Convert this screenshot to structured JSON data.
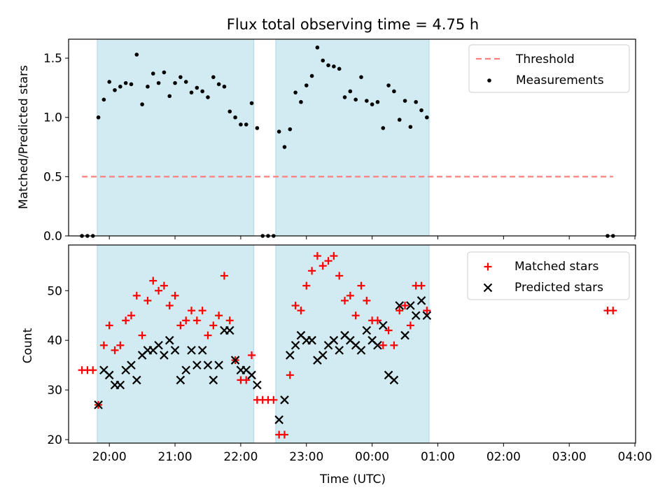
{
  "chart_data": [
    {
      "type": "scatter",
      "title": "Flux total observing time = 4.75 h",
      "xlabel": "",
      "ylabel": "Matched/Predicted stars",
      "x_axis": "time_utc_hours_from_midnight_day1",
      "xlim": [
        19.38,
        28.01
      ],
      "ylim": [
        0,
        1.66
      ],
      "xticks": [],
      "yticks": [
        {
          "value": 0.0,
          "label": "0.0"
        },
        {
          "value": 0.5,
          "label": "0.5"
        },
        {
          "value": 1.0,
          "label": "1.0"
        },
        {
          "value": 1.5,
          "label": "1.5"
        }
      ],
      "shaded_spans": [
        {
          "start": "19:49",
          "end": "22:12",
          "color": "#add8e6",
          "label": "observing-interval-1"
        },
        {
          "start": "22:32",
          "end": "00:52",
          "color": "#add8e6",
          "label": "observing-interval-2"
        }
      ],
      "threshold": {
        "name": "Threshold",
        "value": 0.5,
        "x_range": [
          "19:35",
          "03:40"
        ],
        "color": "#ff7f7f",
        "style": "dashed"
      },
      "series": [
        {
          "name": "Measurements",
          "color": "#000000",
          "marker": "dot",
          "x": [
            "19:35",
            "19:40",
            "19:45",
            "19:50",
            "19:55",
            "20:00",
            "20:05",
            "20:10",
            "20:15",
            "20:20",
            "20:25",
            "20:30",
            "20:35",
            "20:40",
            "20:45",
            "20:50",
            "20:55",
            "21:00",
            "21:05",
            "21:10",
            "21:15",
            "21:20",
            "21:25",
            "21:30",
            "21:35",
            "21:40",
            "21:45",
            "21:50",
            "21:55",
            "22:00",
            "22:05",
            "22:10",
            "22:15",
            "22:20",
            "22:25",
            "22:30",
            "22:35",
            "22:40",
            "22:45",
            "22:50",
            "22:55",
            "23:00",
            "23:05",
            "23:10",
            "23:15",
            "23:20",
            "23:25",
            "23:30",
            "23:35",
            "23:40",
            "23:45",
            "23:50",
            "23:55",
            "00:00",
            "00:05",
            "00:10",
            "00:15",
            "00:20",
            "00:25",
            "00:30",
            "00:35",
            "00:40",
            "00:45",
            "00:50",
            "03:35",
            "03:40"
          ],
          "y": [
            0.0,
            0.0,
            0.0,
            1.0,
            1.15,
            1.3,
            1.23,
            1.26,
            1.29,
            1.28,
            1.53,
            1.11,
            1.26,
            1.37,
            1.29,
            1.38,
            1.18,
            1.29,
            1.34,
            1.3,
            1.21,
            1.25,
            1.22,
            1.17,
            1.34,
            1.28,
            1.26,
            1.05,
            1.0,
            0.94,
            0.94,
            1.12,
            0.91,
            0.0,
            0.0,
            0.0,
            0.88,
            0.75,
            0.9,
            1.21,
            1.13,
            1.27,
            1.35,
            1.59,
            1.48,
            1.44,
            1.43,
            1.41,
            1.17,
            1.22,
            1.15,
            1.34,
            1.14,
            1.11,
            1.13,
            0.91,
            1.27,
            1.22,
            0.98,
            1.14,
            0.92,
            1.13,
            1.06,
            1.0,
            0.0,
            0.0
          ]
        }
      ],
      "legend": {
        "position": "top-right",
        "entries": [
          "Threshold",
          "Measurements"
        ]
      },
      "grid": false
    },
    {
      "type": "scatter",
      "title": "",
      "xlabel": "Time (UTC)",
      "ylabel": "Count",
      "x_axis": "time_utc_hours_from_midnight_day1",
      "xlim": [
        19.38,
        28.01
      ],
      "ylim": [
        19.3,
        59.2
      ],
      "xticks": [
        {
          "value": 20,
          "label": "20:00"
        },
        {
          "value": 21,
          "label": "21:00"
        },
        {
          "value": 22,
          "label": "22:00"
        },
        {
          "value": 23,
          "label": "23:00"
        },
        {
          "value": 24,
          "label": "00:00"
        },
        {
          "value": 25,
          "label": "01:00"
        },
        {
          "value": 26,
          "label": "02:00"
        },
        {
          "value": 27,
          "label": "03:00"
        },
        {
          "value": 28,
          "label": "04:00"
        }
      ],
      "yticks": [
        {
          "value": 20,
          "label": "20"
        },
        {
          "value": 30,
          "label": "30"
        },
        {
          "value": 40,
          "label": "40"
        },
        {
          "value": 50,
          "label": "50"
        }
      ],
      "shaded_spans": [
        {
          "start": "19:49",
          "end": "22:12",
          "color": "#add8e6",
          "label": "observing-interval-1"
        },
        {
          "start": "22:32",
          "end": "00:52",
          "color": "#add8e6",
          "label": "observing-interval-2"
        }
      ],
      "series": [
        {
          "name": "Matched stars",
          "color": "#ff0000",
          "marker": "plus",
          "x": [
            "19:35",
            "19:40",
            "19:45",
            "19:50",
            "19:55",
            "20:00",
            "20:05",
            "20:10",
            "20:15",
            "20:20",
            "20:25",
            "20:30",
            "20:35",
            "20:40",
            "20:45",
            "20:50",
            "20:55",
            "21:00",
            "21:05",
            "21:10",
            "21:15",
            "21:20",
            "21:25",
            "21:30",
            "21:35",
            "21:40",
            "21:45",
            "21:50",
            "21:55",
            "22:00",
            "22:05",
            "22:10",
            "22:15",
            "22:20",
            "22:25",
            "22:30",
            "22:35",
            "22:40",
            "22:45",
            "22:50",
            "22:55",
            "23:00",
            "23:05",
            "23:10",
            "23:15",
            "23:20",
            "23:25",
            "23:30",
            "23:35",
            "23:40",
            "23:45",
            "23:50",
            "23:55",
            "00:00",
            "00:05",
            "00:10",
            "00:15",
            "00:20",
            "00:25",
            "00:30",
            "00:35",
            "00:40",
            "00:45",
            "00:50",
            "03:35",
            "03:40"
          ],
          "y": [
            34,
            34,
            34,
            27,
            39,
            43,
            38,
            39,
            44,
            45,
            49,
            41,
            48,
            52,
            50,
            51,
            47,
            49,
            43,
            44,
            46,
            44,
            46,
            41,
            43,
            45,
            53,
            44,
            36,
            32,
            32,
            37,
            28,
            28,
            28,
            28,
            21,
            21,
            33,
            47,
            46,
            51,
            54,
            57,
            55,
            56,
            57,
            53,
            48,
            49,
            45,
            51,
            48,
            44,
            44,
            39,
            42,
            39,
            46,
            47,
            43,
            51,
            51,
            46,
            46,
            46
          ]
        },
        {
          "name": "Predicted stars",
          "color": "#000000",
          "marker": "x",
          "x": [
            "19:50",
            "19:55",
            "20:00",
            "20:05",
            "20:10",
            "20:15",
            "20:20",
            "20:25",
            "20:30",
            "20:35",
            "20:40",
            "20:45",
            "20:50",
            "20:55",
            "21:00",
            "21:05",
            "21:10",
            "21:15",
            "21:20",
            "21:25",
            "21:30",
            "21:35",
            "21:40",
            "21:45",
            "21:50",
            "21:55",
            "22:00",
            "22:05",
            "22:10",
            "22:15",
            "22:35",
            "22:40",
            "22:45",
            "22:50",
            "22:55",
            "23:00",
            "23:05",
            "23:10",
            "23:15",
            "23:20",
            "23:25",
            "23:30",
            "23:35",
            "23:40",
            "23:45",
            "23:50",
            "23:55",
            "00:00",
            "00:05",
            "00:10",
            "00:15",
            "00:20",
            "00:25",
            "00:30",
            "00:35",
            "00:40",
            "00:45",
            "00:50"
          ],
          "y": [
            27,
            34,
            33,
            31,
            31,
            34,
            35,
            32,
            37,
            38,
            38,
            39,
            37,
            40,
            38,
            32,
            34,
            38,
            35,
            38,
            35,
            32,
            35,
            42,
            42,
            36,
            34,
            34,
            33,
            31,
            24,
            28,
            37,
            39,
            41,
            40,
            40,
            36,
            37,
            39,
            40,
            38,
            41,
            40,
            39,
            38,
            42,
            40,
            39,
            43,
            33,
            32,
            47,
            41,
            47,
            45,
            48,
            45
          ]
        }
      ],
      "legend": {
        "position": "top-right",
        "entries": [
          "Matched stars",
          "Predicted stars"
        ]
      },
      "grid": false
    }
  ]
}
